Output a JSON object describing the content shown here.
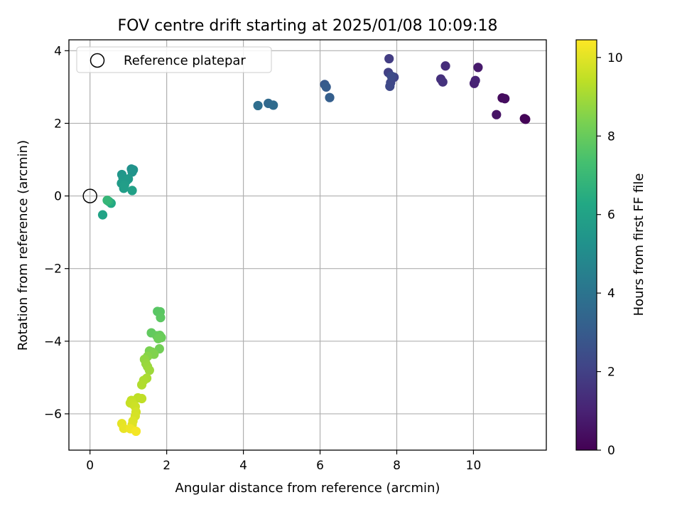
{
  "chart_data": {
    "type": "scatter",
    "title": "FOV centre drift starting at 2025/01/08 10:09:18",
    "xlabel": "Angular distance from reference (arcmin)",
    "ylabel": "Rotation from reference (arcmin)",
    "xlim": [
      -0.55,
      11.9
    ],
    "ylim": [
      -7,
      4.3
    ],
    "xticks": [
      0,
      2,
      4,
      6,
      8,
      10
    ],
    "yticks": [
      -6,
      -4,
      -2,
      0,
      2,
      4
    ],
    "xtick_labels": [
      "0",
      "2",
      "4",
      "6",
      "8",
      "10"
    ],
    "ytick_labels": [
      "−6",
      "−4",
      "−2",
      "0",
      "2",
      "4"
    ],
    "grid": true,
    "legend": {
      "placement": "top-left",
      "entries": [
        {
          "label": "Reference platepar",
          "marker": "open-circle"
        }
      ]
    },
    "reference_point": {
      "x": 0,
      "y": 0
    },
    "colorbar": {
      "label": "Hours from first FF file",
      "colormap": "viridis",
      "range": [
        0,
        10.45
      ],
      "ticks": [
        0,
        2,
        4,
        6,
        8,
        10
      ],
      "tick_labels": [
        "0",
        "2",
        "4",
        "6",
        "8",
        "10"
      ]
    },
    "points": [
      {
        "x": 11.33,
        "y": 2.13,
        "c": 0.05
      },
      {
        "x": 11.36,
        "y": 2.11,
        "c": 0.1
      },
      {
        "x": 10.75,
        "y": 2.7,
        "c": 0.3
      },
      {
        "x": 10.82,
        "y": 2.68,
        "c": 0.35
      },
      {
        "x": 10.6,
        "y": 2.24,
        "c": 0.55
      },
      {
        "x": 10.12,
        "y": 3.54,
        "c": 0.75
      },
      {
        "x": 10.02,
        "y": 3.1,
        "c": 1.0
      },
      {
        "x": 10.05,
        "y": 3.18,
        "c": 1.05
      },
      {
        "x": 9.27,
        "y": 3.58,
        "c": 1.35
      },
      {
        "x": 9.15,
        "y": 3.22,
        "c": 1.45
      },
      {
        "x": 9.2,
        "y": 3.14,
        "c": 1.5
      },
      {
        "x": 7.8,
        "y": 3.78,
        "c": 1.85
      },
      {
        "x": 7.78,
        "y": 3.4,
        "c": 2.0
      },
      {
        "x": 7.93,
        "y": 3.27,
        "c": 2.1
      },
      {
        "x": 7.84,
        "y": 3.12,
        "c": 2.2
      },
      {
        "x": 7.82,
        "y": 3.02,
        "c": 2.3
      },
      {
        "x": 7.86,
        "y": 3.3,
        "c": 2.35
      },
      {
        "x": 6.12,
        "y": 3.07,
        "c": 2.9
      },
      {
        "x": 6.16,
        "y": 3.0,
        "c": 3.0
      },
      {
        "x": 6.25,
        "y": 2.71,
        "c": 3.15
      },
      {
        "x": 4.65,
        "y": 2.55,
        "c": 3.55
      },
      {
        "x": 4.78,
        "y": 2.5,
        "c": 3.65
      },
      {
        "x": 4.38,
        "y": 2.49,
        "c": 3.75
      },
      {
        "x": 1.08,
        "y": 0.74,
        "c": 5.2
      },
      {
        "x": 1.13,
        "y": 0.72,
        "c": 5.3
      },
      {
        "x": 1.1,
        "y": 0.66,
        "c": 5.35
      },
      {
        "x": 0.83,
        "y": 0.59,
        "c": 5.45
      },
      {
        "x": 0.86,
        "y": 0.5,
        "c": 5.55
      },
      {
        "x": 1.0,
        "y": 0.47,
        "c": 5.6
      },
      {
        "x": 0.95,
        "y": 0.42,
        "c": 5.65
      },
      {
        "x": 0.82,
        "y": 0.35,
        "c": 5.7
      },
      {
        "x": 0.9,
        "y": 0.3,
        "c": 5.75
      },
      {
        "x": 0.88,
        "y": 0.21,
        "c": 5.8
      },
      {
        "x": 1.1,
        "y": 0.15,
        "c": 5.9
      },
      {
        "x": 0.33,
        "y": -0.52,
        "c": 6.05
      },
      {
        "x": 0.55,
        "y": -0.2,
        "c": 6.3
      },
      {
        "x": 0.49,
        "y": -0.15,
        "c": 6.6
      },
      {
        "x": 0.45,
        "y": -0.12,
        "c": 6.9
      },
      {
        "x": 1.76,
        "y": -3.18,
        "c": 7.7
      },
      {
        "x": 1.83,
        "y": -3.19,
        "c": 7.75
      },
      {
        "x": 1.84,
        "y": -3.35,
        "c": 7.8
      },
      {
        "x": 1.6,
        "y": -3.77,
        "c": 7.9
      },
      {
        "x": 1.74,
        "y": -3.85,
        "c": 7.95
      },
      {
        "x": 1.82,
        "y": -3.84,
        "c": 8.0
      },
      {
        "x": 1.86,
        "y": -3.9,
        "c": 8.05
      },
      {
        "x": 1.78,
        "y": -3.93,
        "c": 8.1
      },
      {
        "x": 1.81,
        "y": -4.21,
        "c": 8.2
      },
      {
        "x": 1.55,
        "y": -4.27,
        "c": 8.35
      },
      {
        "x": 1.62,
        "y": -4.3,
        "c": 8.4
      },
      {
        "x": 1.67,
        "y": -4.36,
        "c": 8.45
      },
      {
        "x": 1.5,
        "y": -4.42,
        "c": 8.55
      },
      {
        "x": 1.42,
        "y": -4.5,
        "c": 8.7
      },
      {
        "x": 1.46,
        "y": -4.62,
        "c": 8.8
      },
      {
        "x": 1.5,
        "y": -4.7,
        "c": 8.85
      },
      {
        "x": 1.55,
        "y": -4.8,
        "c": 8.9
      },
      {
        "x": 1.48,
        "y": -5.02,
        "c": 9.1
      },
      {
        "x": 1.4,
        "y": -5.08,
        "c": 9.15
      },
      {
        "x": 1.35,
        "y": -5.2,
        "c": 9.2
      },
      {
        "x": 1.25,
        "y": -5.56,
        "c": 9.4
      },
      {
        "x": 1.35,
        "y": -5.58,
        "c": 9.45
      },
      {
        "x": 1.08,
        "y": -5.63,
        "c": 9.5
      },
      {
        "x": 1.05,
        "y": -5.7,
        "c": 9.55
      },
      {
        "x": 1.12,
        "y": -5.73,
        "c": 9.6
      },
      {
        "x": 1.18,
        "y": -5.8,
        "c": 9.65
      },
      {
        "x": 1.2,
        "y": -5.95,
        "c": 9.75
      },
      {
        "x": 1.18,
        "y": -6.06,
        "c": 9.8
      },
      {
        "x": 1.12,
        "y": -6.2,
        "c": 9.9
      },
      {
        "x": 1.1,
        "y": -6.3,
        "c": 9.95
      },
      {
        "x": 0.83,
        "y": -6.27,
        "c": 10.05
      },
      {
        "x": 0.88,
        "y": -6.4,
        "c": 10.1
      },
      {
        "x": 1.05,
        "y": -6.41,
        "c": 10.2
      },
      {
        "x": 1.2,
        "y": -6.48,
        "c": 10.3
      }
    ]
  }
}
